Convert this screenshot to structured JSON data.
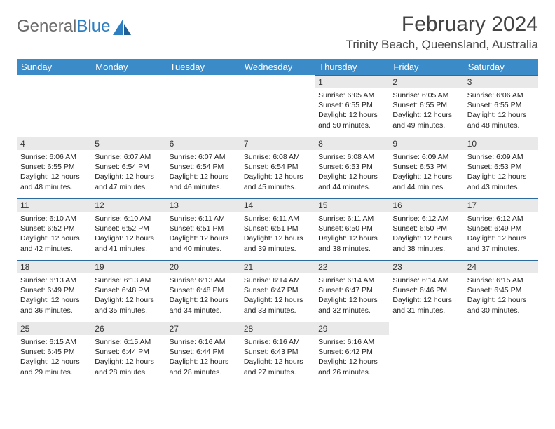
{
  "logo": {
    "part1": "General",
    "part2": "Blue"
  },
  "title": "February 2024",
  "location": "Trinity Beach, Queensland, Australia",
  "colors": {
    "header_bg": "#3b8bc8",
    "header_text": "#ffffff",
    "daynum_bg": "#e9e9e9",
    "daynum_border": "#2d6a9e",
    "logo_gray": "#6a6a6a",
    "logo_blue": "#2d7fc1",
    "body_text": "#222222",
    "bg": "#ffffff"
  },
  "typography": {
    "month_title_pt": 30,
    "location_pt": 17,
    "weekday_pt": 13,
    "daynum_pt": 12,
    "dayinfo_pt": 10.5,
    "logo_pt": 24
  },
  "weekdays": [
    "Sunday",
    "Monday",
    "Tuesday",
    "Wednesday",
    "Thursday",
    "Friday",
    "Saturday"
  ],
  "grid": {
    "first_day_index": 4,
    "rows": 5,
    "cols": 7
  },
  "days": [
    {
      "n": 1,
      "sunrise": "6:05 AM",
      "sunset": "6:55 PM",
      "daylight": "12 hours and 50 minutes."
    },
    {
      "n": 2,
      "sunrise": "6:05 AM",
      "sunset": "6:55 PM",
      "daylight": "12 hours and 49 minutes."
    },
    {
      "n": 3,
      "sunrise": "6:06 AM",
      "sunset": "6:55 PM",
      "daylight": "12 hours and 48 minutes."
    },
    {
      "n": 4,
      "sunrise": "6:06 AM",
      "sunset": "6:55 PM",
      "daylight": "12 hours and 48 minutes."
    },
    {
      "n": 5,
      "sunrise": "6:07 AM",
      "sunset": "6:54 PM",
      "daylight": "12 hours and 47 minutes."
    },
    {
      "n": 6,
      "sunrise": "6:07 AM",
      "sunset": "6:54 PM",
      "daylight": "12 hours and 46 minutes."
    },
    {
      "n": 7,
      "sunrise": "6:08 AM",
      "sunset": "6:54 PM",
      "daylight": "12 hours and 45 minutes."
    },
    {
      "n": 8,
      "sunrise": "6:08 AM",
      "sunset": "6:53 PM",
      "daylight": "12 hours and 44 minutes."
    },
    {
      "n": 9,
      "sunrise": "6:09 AM",
      "sunset": "6:53 PM",
      "daylight": "12 hours and 44 minutes."
    },
    {
      "n": 10,
      "sunrise": "6:09 AM",
      "sunset": "6:53 PM",
      "daylight": "12 hours and 43 minutes."
    },
    {
      "n": 11,
      "sunrise": "6:10 AM",
      "sunset": "6:52 PM",
      "daylight": "12 hours and 42 minutes."
    },
    {
      "n": 12,
      "sunrise": "6:10 AM",
      "sunset": "6:52 PM",
      "daylight": "12 hours and 41 minutes."
    },
    {
      "n": 13,
      "sunrise": "6:11 AM",
      "sunset": "6:51 PM",
      "daylight": "12 hours and 40 minutes."
    },
    {
      "n": 14,
      "sunrise": "6:11 AM",
      "sunset": "6:51 PM",
      "daylight": "12 hours and 39 minutes."
    },
    {
      "n": 15,
      "sunrise": "6:11 AM",
      "sunset": "6:50 PM",
      "daylight": "12 hours and 38 minutes."
    },
    {
      "n": 16,
      "sunrise": "6:12 AM",
      "sunset": "6:50 PM",
      "daylight": "12 hours and 38 minutes."
    },
    {
      "n": 17,
      "sunrise": "6:12 AM",
      "sunset": "6:49 PM",
      "daylight": "12 hours and 37 minutes."
    },
    {
      "n": 18,
      "sunrise": "6:13 AM",
      "sunset": "6:49 PM",
      "daylight": "12 hours and 36 minutes."
    },
    {
      "n": 19,
      "sunrise": "6:13 AM",
      "sunset": "6:48 PM",
      "daylight": "12 hours and 35 minutes."
    },
    {
      "n": 20,
      "sunrise": "6:13 AM",
      "sunset": "6:48 PM",
      "daylight": "12 hours and 34 minutes."
    },
    {
      "n": 21,
      "sunrise": "6:14 AM",
      "sunset": "6:47 PM",
      "daylight": "12 hours and 33 minutes."
    },
    {
      "n": 22,
      "sunrise": "6:14 AM",
      "sunset": "6:47 PM",
      "daylight": "12 hours and 32 minutes."
    },
    {
      "n": 23,
      "sunrise": "6:14 AM",
      "sunset": "6:46 PM",
      "daylight": "12 hours and 31 minutes."
    },
    {
      "n": 24,
      "sunrise": "6:15 AM",
      "sunset": "6:45 PM",
      "daylight": "12 hours and 30 minutes."
    },
    {
      "n": 25,
      "sunrise": "6:15 AM",
      "sunset": "6:45 PM",
      "daylight": "12 hours and 29 minutes."
    },
    {
      "n": 26,
      "sunrise": "6:15 AM",
      "sunset": "6:44 PM",
      "daylight": "12 hours and 28 minutes."
    },
    {
      "n": 27,
      "sunrise": "6:16 AM",
      "sunset": "6:44 PM",
      "daylight": "12 hours and 28 minutes."
    },
    {
      "n": 28,
      "sunrise": "6:16 AM",
      "sunset": "6:43 PM",
      "daylight": "12 hours and 27 minutes."
    },
    {
      "n": 29,
      "sunrise": "6:16 AM",
      "sunset": "6:42 PM",
      "daylight": "12 hours and 26 minutes."
    }
  ],
  "labels": {
    "sunrise": "Sunrise:",
    "sunset": "Sunset:",
    "daylight": "Daylight:"
  }
}
